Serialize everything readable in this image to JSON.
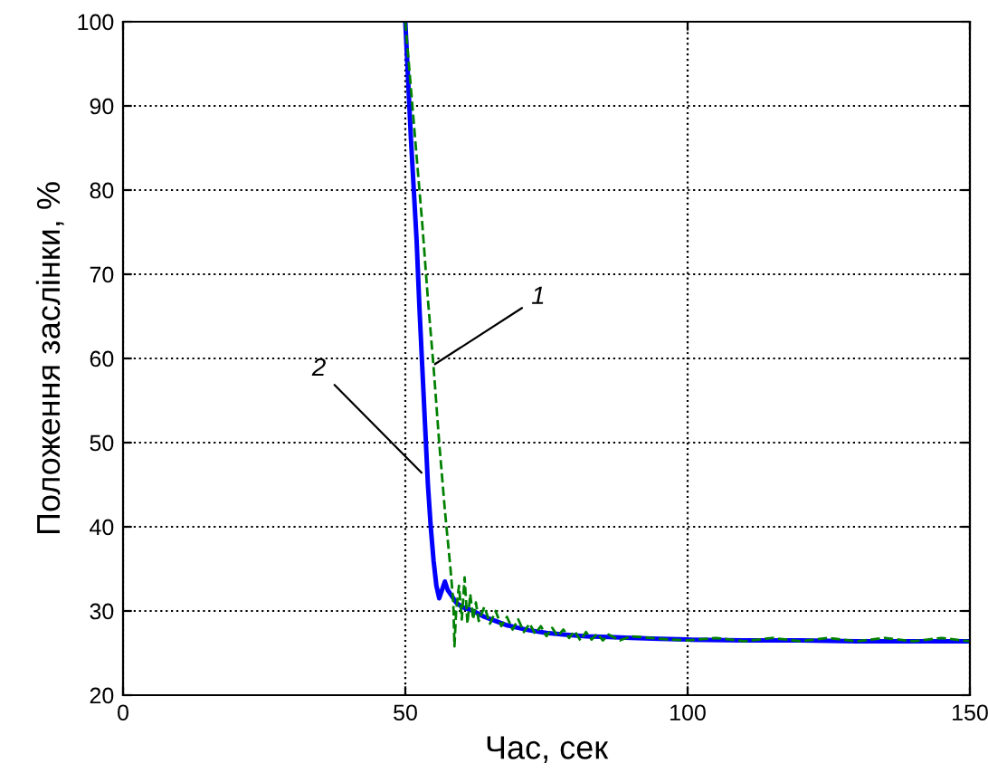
{
  "chart_data": {
    "type": "line",
    "xlabel": "Час, сек",
    "ylabel": "Положення заслінки, %",
    "xlim": [
      0,
      150
    ],
    "ylim": [
      20,
      100
    ],
    "xticks": [
      0,
      50,
      100,
      150
    ],
    "yticks": [
      20,
      30,
      40,
      50,
      60,
      70,
      80,
      90,
      100
    ],
    "grid": true,
    "series": [
      {
        "color": "#0000ff",
        "line_style": "solid",
        "x": [
          50,
          50.5,
          51,
          51.5,
          52,
          52.5,
          53,
          53.5,
          54,
          54.5,
          55,
          55.5,
          56,
          56.5,
          57,
          57.5,
          58,
          59,
          60,
          62,
          64,
          66,
          68,
          70,
          72,
          75,
          78,
          82,
          86,
          90,
          95,
          100,
          110,
          120,
          130,
          140,
          150
        ],
        "values": [
          100,
          93,
          86,
          80,
          74,
          66,
          59,
          52,
          45,
          40,
          36,
          33,
          31.5,
          32.5,
          33.5,
          32.5,
          32,
          31,
          30.5,
          30,
          29.3,
          28.8,
          28.3,
          28,
          27.7,
          27.4,
          27.2,
          27,
          26.9,
          26.8,
          26.7,
          26.6,
          26.5,
          26.5,
          26.4,
          26.4,
          26.4
        ]
      },
      {
        "color": "#008000",
        "line_style": "dashed",
        "x": [
          50,
          51,
          52,
          53,
          54,
          55,
          56,
          57,
          58,
          58.5,
          58.7,
          59,
          59.5,
          60,
          60.5,
          61,
          61.5,
          62,
          62.5,
          63,
          64,
          65,
          66,
          67,
          68,
          69,
          70,
          71,
          72,
          73,
          74,
          75,
          76,
          77,
          78,
          79,
          80,
          81,
          82,
          83,
          84,
          85,
          86,
          88,
          90,
          95,
          100,
          105,
          110,
          115,
          120,
          125,
          130,
          135,
          140,
          145,
          150
        ],
        "values": [
          100,
          92,
          84,
          76,
          67,
          59,
          50,
          42,
          35,
          31,
          25.8,
          30,
          33,
          29,
          34,
          28.5,
          32,
          29,
          31,
          28.8,
          30.5,
          28.5,
          30,
          28.2,
          29.3,
          27.8,
          29,
          27.5,
          28.5,
          27.3,
          28.2,
          27,
          28,
          27,
          27.8,
          26.8,
          27.6,
          26.5,
          27.5,
          26.6,
          27.3,
          26.5,
          27.2,
          26.5,
          27,
          26.7,
          26.5,
          26.8,
          26.4,
          26.8,
          26.4,
          26.8,
          26.4,
          26.8,
          26.4,
          26.8,
          26.4
        ]
      }
    ],
    "annotations": [
      {
        "text": "1",
        "x": 54.5,
        "y": 59
      },
      {
        "text": "2",
        "x": 53.5,
        "y": 46
      }
    ]
  }
}
